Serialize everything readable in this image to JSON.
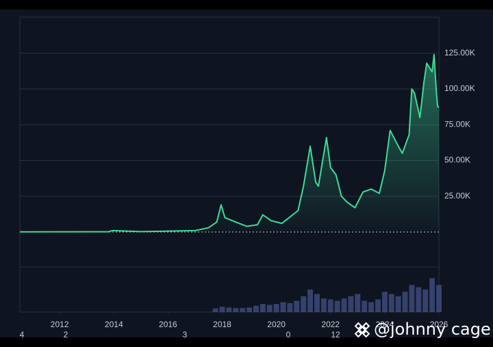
{
  "chart_data": {
    "type": "area-line",
    "x": [
      2010.53,
      2013.8,
      2013.95,
      2015.0,
      2017.0,
      2017.5,
      2017.8,
      2017.96,
      2018.1,
      2018.5,
      2018.9,
      2019.3,
      2019.5,
      2019.8,
      2020.2,
      2020.4,
      2020.8,
      2021.0,
      2021.25,
      2021.45,
      2021.55,
      2021.85,
      2022.0,
      2022.2,
      2022.4,
      2022.6,
      2022.9,
      2023.2,
      2023.5,
      2023.8,
      2024.0,
      2024.2,
      2024.5,
      2024.65,
      2024.9,
      2025.0,
      2025.1,
      2025.3,
      2025.45,
      2025.55,
      2025.75,
      2025.82,
      2025.9,
      2025.95,
      2026.0
    ],
    "series": [
      {
        "color": "#3ddc97",
        "values": [
          0.1,
          0.2,
          1,
          0.3,
          1,
          3,
          7,
          19,
          10,
          7,
          4,
          5,
          12,
          8,
          6,
          9,
          15,
          32,
          60,
          35,
          32,
          66,
          45,
          40,
          25,
          21,
          17,
          28,
          30,
          27,
          43,
          71,
          60,
          55,
          68,
          100,
          97,
          80,
          105,
          118,
          112,
          124,
          100,
          88,
          87
        ]
      }
    ],
    "ylim": [
      -24.4,
      150.2
    ],
    "yticks": [
      {
        "value": 25,
        "label": "25.00K"
      },
      {
        "value": 50,
        "label": "50.00K"
      },
      {
        "value": 75,
        "label": "75.00K"
      },
      {
        "value": 100,
        "label": "100.00K"
      },
      {
        "value": 125,
        "label": "125.00K"
      }
    ],
    "xlim": [
      2010.53,
      2026
    ],
    "xticks": [
      2012,
      2014,
      2016,
      2018,
      2020,
      2022,
      2024,
      2026
    ],
    "volume": {
      "color": "#3d4a7a",
      "x": [
        2017.75,
        2018,
        2018.25,
        2018.5,
        2018.75,
        2019,
        2019.25,
        2019.5,
        2019.75,
        2020,
        2020.25,
        2020.5,
        2020.75,
        2021,
        2021.25,
        2021.5,
        2021.75,
        2022,
        2022.25,
        2022.5,
        2022.75,
        2023,
        2023.25,
        2023.5,
        2023.75,
        2024,
        2024.25,
        2024.5,
        2024.75,
        2025,
        2025.25,
        2025.5,
        2025.75,
        2026
      ],
      "values": [
        8,
        12,
        10,
        9,
        9,
        10,
        14,
        18,
        16,
        18,
        22,
        20,
        25,
        35,
        50,
        40,
        30,
        28,
        25,
        30,
        35,
        40,
        25,
        22,
        28,
        45,
        40,
        35,
        45,
        60,
        55,
        50,
        75,
        60
      ],
      "ylim": [
        0,
        100
      ]
    },
    "cropped_labels": [
      "4",
      "2",
      "3",
      "0",
      "12"
    ]
  },
  "watermark": "@johnny cage"
}
